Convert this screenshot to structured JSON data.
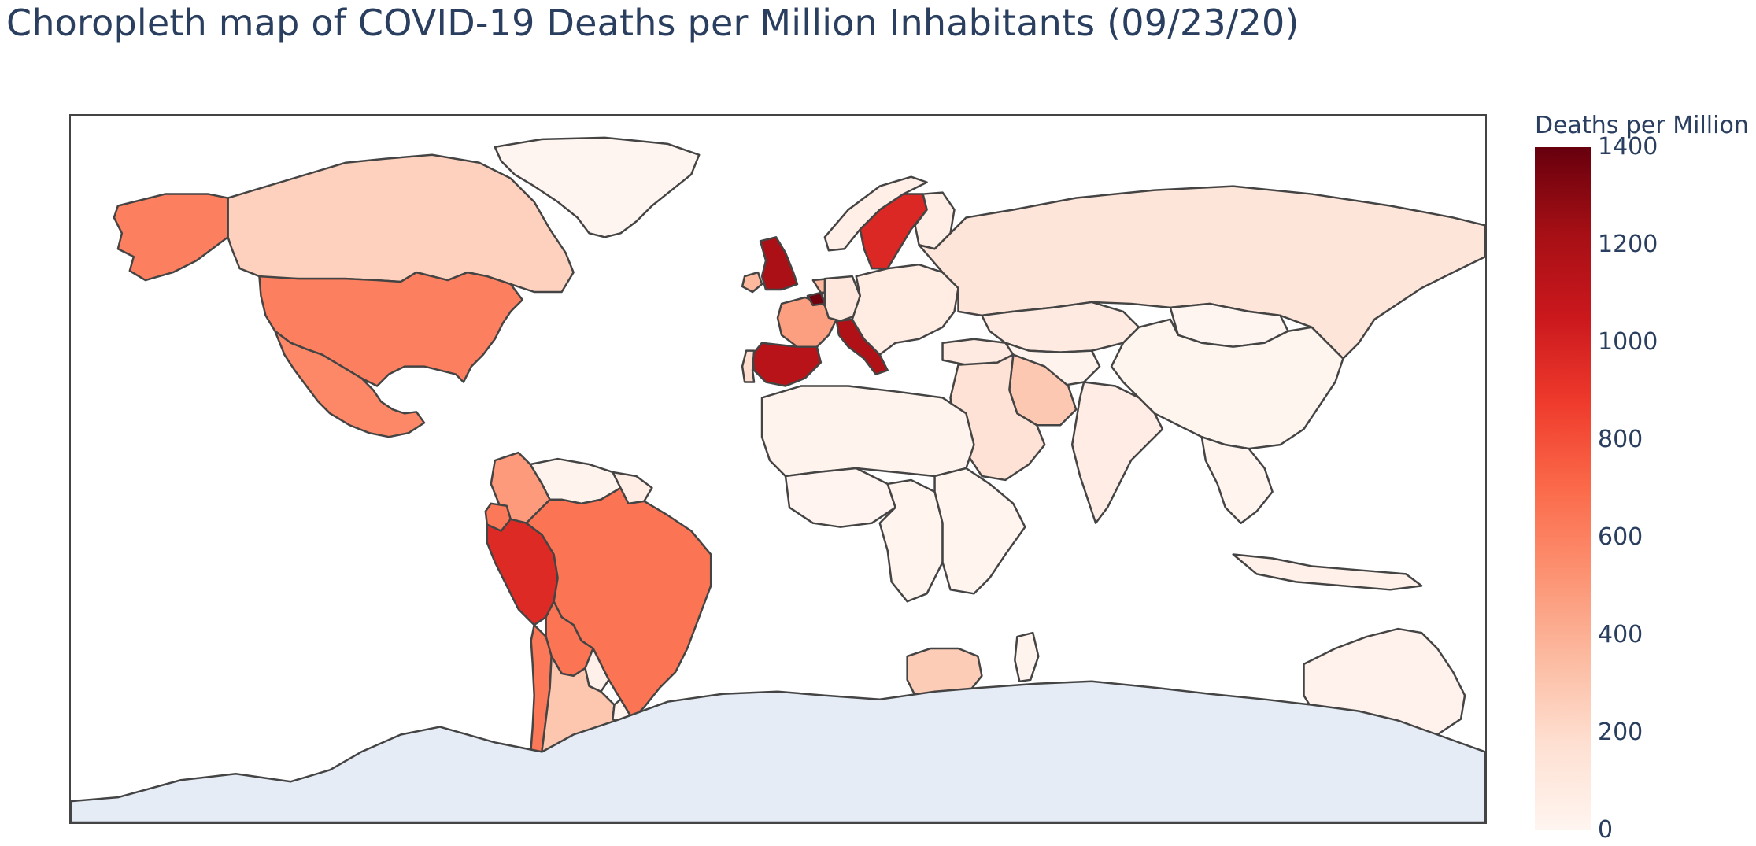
{
  "title": "Choropleth map of COVID-19 Deaths per Million Inhabitants (09/23/20)",
  "colorbar": {
    "title": "Deaths per Million",
    "min": 0,
    "max": 1400,
    "ticks": [
      "1400",
      "1200",
      "1000",
      "800",
      "600",
      "400",
      "200",
      "0"
    ],
    "colorscale": [
      "#fff5f0",
      "#fee0d2",
      "#fcbba1",
      "#fc9272",
      "#fb6a4a",
      "#ef3b2c",
      "#cb181d",
      "#a50f15",
      "#67000d"
    ]
  },
  "colors": {
    "no_data": "#e5ecf6",
    "border": "#444444",
    "text": "#2a3f5f"
  },
  "map_data": {
    "projection": "equirectangular",
    "regions": [
      {
        "name": "Canada",
        "value": 245
      },
      {
        "name": "Alaska (United States)",
        "value": 610
      },
      {
        "name": "United States",
        "value": 610
      },
      {
        "name": "Mexico",
        "value": 570
      },
      {
        "name": "Greenland",
        "value": 0
      },
      {
        "name": "Colombia",
        "value": 490
      },
      {
        "name": "Venezuela",
        "value": 20
      },
      {
        "name": "Ecuador",
        "value": 640
      },
      {
        "name": "Peru",
        "value": 960
      },
      {
        "name": "Brazil",
        "value": 650
      },
      {
        "name": "Bolivia",
        "value": 650
      },
      {
        "name": "Chile",
        "value": 640
      },
      {
        "name": "Argentina",
        "value": 300
      },
      {
        "name": "Paraguay",
        "value": 40
      },
      {
        "name": "Uruguay",
        "value": 15
      },
      {
        "name": "Guianas",
        "value": 60
      },
      {
        "name": "United Kingdom",
        "value": 1200
      },
      {
        "name": "Ireland",
        "value": 360
      },
      {
        "name": "France",
        "value": 470
      },
      {
        "name": "Spain",
        "value": 1140
      },
      {
        "name": "Portugal",
        "value": 190
      },
      {
        "name": "Italy",
        "value": 1180
      },
      {
        "name": "Belgium",
        "value": 1370
      },
      {
        "name": "Netherlands",
        "value": 370
      },
      {
        "name": "Germany",
        "value": 110
      },
      {
        "name": "Sweden",
        "value": 970
      },
      {
        "name": "Norway",
        "value": 50
      },
      {
        "name": "Finland",
        "value": 60
      },
      {
        "name": "Eastern Europe",
        "value": 70
      },
      {
        "name": "Russia",
        "value": 130
      },
      {
        "name": "Kazakhstan",
        "value": 90
      },
      {
        "name": "Central Asia",
        "value": 15
      },
      {
        "name": "Mongolia",
        "value": 0
      },
      {
        "name": "China",
        "value": 3
      },
      {
        "name": "Turkey",
        "value": 90
      },
      {
        "name": "Iran",
        "value": 290
      },
      {
        "name": "Middle East",
        "value": 160
      },
      {
        "name": "India",
        "value": 65
      },
      {
        "name": "Southeast Asia",
        "value": 10
      },
      {
        "name": "Indonesia",
        "value": 35
      },
      {
        "name": "Australia",
        "value": 30
      },
      {
        "name": "North Africa",
        "value": 20
      },
      {
        "name": "West Africa",
        "value": 5
      },
      {
        "name": "Central Africa",
        "value": 10
      },
      {
        "name": "East Africa",
        "value": 10
      },
      {
        "name": "South Africa",
        "value": 270
      },
      {
        "name": "Madagascar",
        "value": 20
      },
      {
        "name": "Antarctica",
        "value": null
      }
    ]
  }
}
